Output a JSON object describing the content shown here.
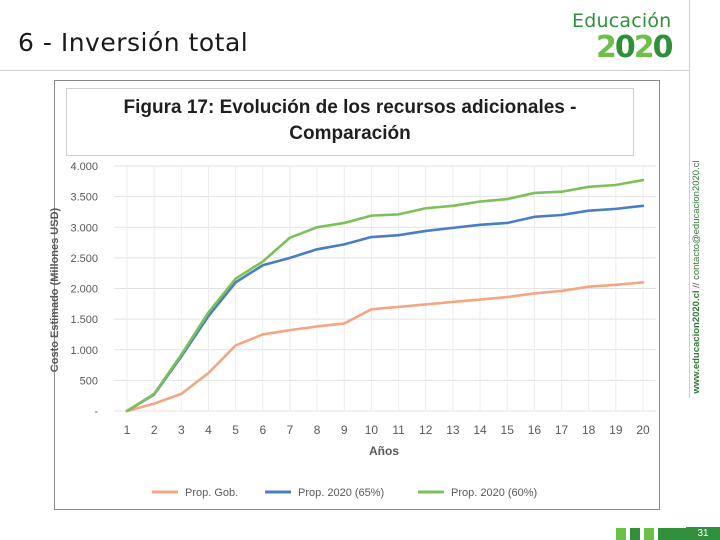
{
  "slide": {
    "title": "6 - Inversión total",
    "page_number": "31",
    "logo_top": "Educación",
    "logo_year_a": "2",
    "logo_year_b": "0",
    "logo_year_c": "2",
    "logo_year_d": "0",
    "side_url_bold": "www.educacion2020.cl",
    "side_url_sep": " // ",
    "side_url_rest": "contacto@educacion2020.cl"
  },
  "colors": {
    "accent_green": "#2f8f3a",
    "light_green": "#6cc04a",
    "series_gob": "#f4a582",
    "series_65": "#4a7ec2",
    "series_60": "#7cc05a"
  },
  "chart_data": {
    "type": "line",
    "title_line1": "Figura 17: Evolución de los recursos adicionales -",
    "title_line2": "Comparación",
    "xlabel": "Años",
    "ylabel": "Costo Estimado (Millones USD)",
    "x": [
      1,
      2,
      3,
      4,
      5,
      6,
      7,
      8,
      9,
      10,
      11,
      12,
      13,
      14,
      15,
      16,
      17,
      18,
      19,
      20
    ],
    "ylim": [
      0,
      4000
    ],
    "y_ticks": [
      0,
      500,
      1000,
      1500,
      2000,
      2500,
      3000,
      3500,
      4000
    ],
    "y_tick_labels": [
      "-",
      "500",
      "1.000",
      "1.500",
      "2.000",
      "2.500",
      "3.000",
      "3.500",
      "4.000"
    ],
    "grid": true,
    "legend_position": "bottom",
    "series": [
      {
        "name": "Prop. Gob.",
        "color": "#f4a582",
        "values": [
          0,
          120,
          280,
          620,
          1070,
          1250,
          1320,
          1380,
          1430,
          1660,
          1700,
          1740,
          1780,
          1820,
          1860,
          1920,
          1960,
          2030,
          2060,
          2100
        ]
      },
      {
        "name": "Prop. 2020 (65%)",
        "color": "#4a7ec2",
        "values": [
          0,
          270,
          890,
          1550,
          2100,
          2380,
          2500,
          2640,
          2720,
          2840,
          2870,
          2940,
          2990,
          3040,
          3070,
          3170,
          3200,
          3270,
          3300,
          3350
        ]
      },
      {
        "name": "Prop. 2020 (60%)",
        "color": "#7cc05a",
        "values": [
          0,
          280,
          920,
          1610,
          2160,
          2440,
          2830,
          3000,
          3070,
          3190,
          3210,
          3310,
          3350,
          3420,
          3460,
          3560,
          3580,
          3660,
          3690,
          3770
        ]
      }
    ]
  }
}
